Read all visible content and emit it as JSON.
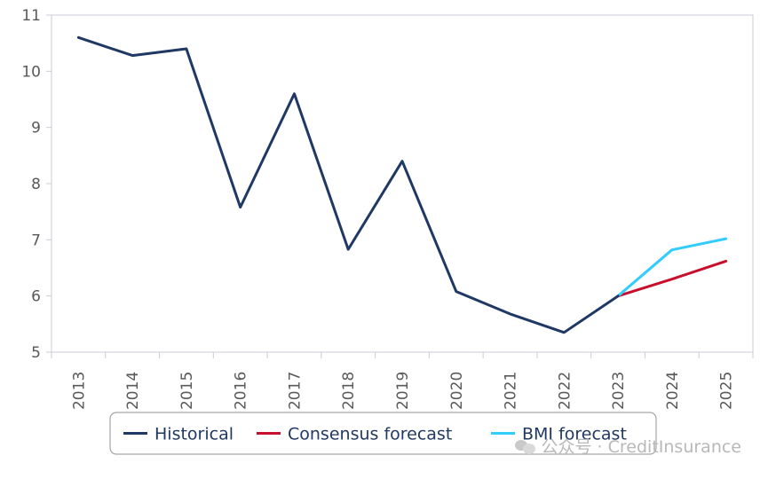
{
  "chart_data": {
    "type": "line",
    "x": [
      "2013",
      "2014",
      "2015",
      "2016",
      "2017",
      "2018",
      "2019",
      "2020",
      "2021",
      "2022",
      "2023",
      "2024",
      "2025"
    ],
    "ylim": [
      5,
      11
    ],
    "yticks": [
      "5",
      "6",
      "7",
      "8",
      "9",
      "10",
      "11"
    ],
    "grid": false,
    "legend_position": "bottom",
    "series": [
      {
        "name": "Historical",
        "color": "#1f3864",
        "x": [
          "2013",
          "2014",
          "2015",
          "2016",
          "2017",
          "2018",
          "2019",
          "2020",
          "2021",
          "2022",
          "2023"
        ],
        "values": [
          10.6,
          10.28,
          10.4,
          7.58,
          9.6,
          6.83,
          8.4,
          6.08,
          5.68,
          5.35,
          6.0
        ]
      },
      {
        "name": "Consensus forecast",
        "color": "#c8102e",
        "x": [
          "2023",
          "2024",
          "2025"
        ],
        "values": [
          6.0,
          6.3,
          6.62
        ]
      },
      {
        "name": "BMI forecast",
        "color": "#33ccff",
        "x": [
          "2023",
          "2024",
          "2025"
        ],
        "values": [
          6.0,
          6.82,
          7.02
        ]
      }
    ]
  },
  "watermark": {
    "text": "公众号 · CreditInsurance",
    "icon": "wechat-icon"
  }
}
